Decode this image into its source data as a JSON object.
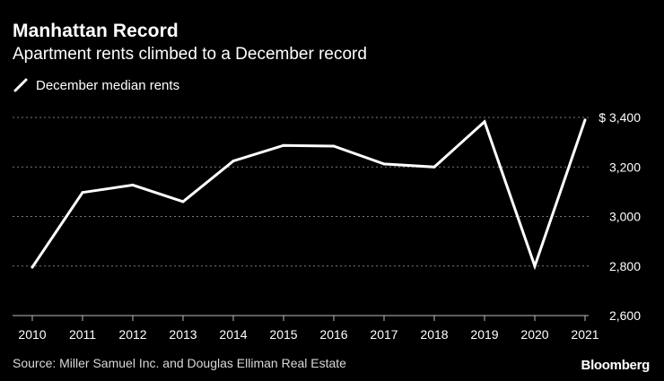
{
  "header": {
    "title": "Manhattan Record",
    "subtitle": "Apartment rents climbed to a December record"
  },
  "footer": {
    "source": "Source: Miller Samuel Inc. and Douglas Elliman Real Estate",
    "brand": "Bloomberg"
  },
  "colors": {
    "background": "#000000",
    "line": "#ffffff",
    "grid": "#7a7a7a",
    "text": "#ffffff"
  },
  "chart_data": {
    "type": "line",
    "title": "Manhattan Record",
    "subtitle": "Apartment rents climbed to a December record",
    "x": [
      "2010",
      "2011",
      "2012",
      "2013",
      "2014",
      "2015",
      "2016",
      "2017",
      "2018",
      "2019",
      "2020",
      "2021"
    ],
    "series": [
      {
        "name": "December median rents",
        "values": [
          2795,
          3097,
          3127,
          3060,
          3224,
          3287,
          3284,
          3212,
          3200,
          3383,
          2800,
          3390
        ]
      }
    ],
    "y_ticks": [
      {
        "value": 3400,
        "label": "$ 3,400"
      },
      {
        "value": 3200,
        "label": "3,200"
      },
      {
        "value": 3000,
        "label": "3,000"
      },
      {
        "value": 2800,
        "label": "2,800"
      },
      {
        "value": 2600,
        "label": "2,600"
      }
    ],
    "ylim": [
      2600,
      3400
    ],
    "xlabel": "",
    "ylabel": "",
    "grid": "horizontal dotted",
    "legend": "top-left"
  }
}
